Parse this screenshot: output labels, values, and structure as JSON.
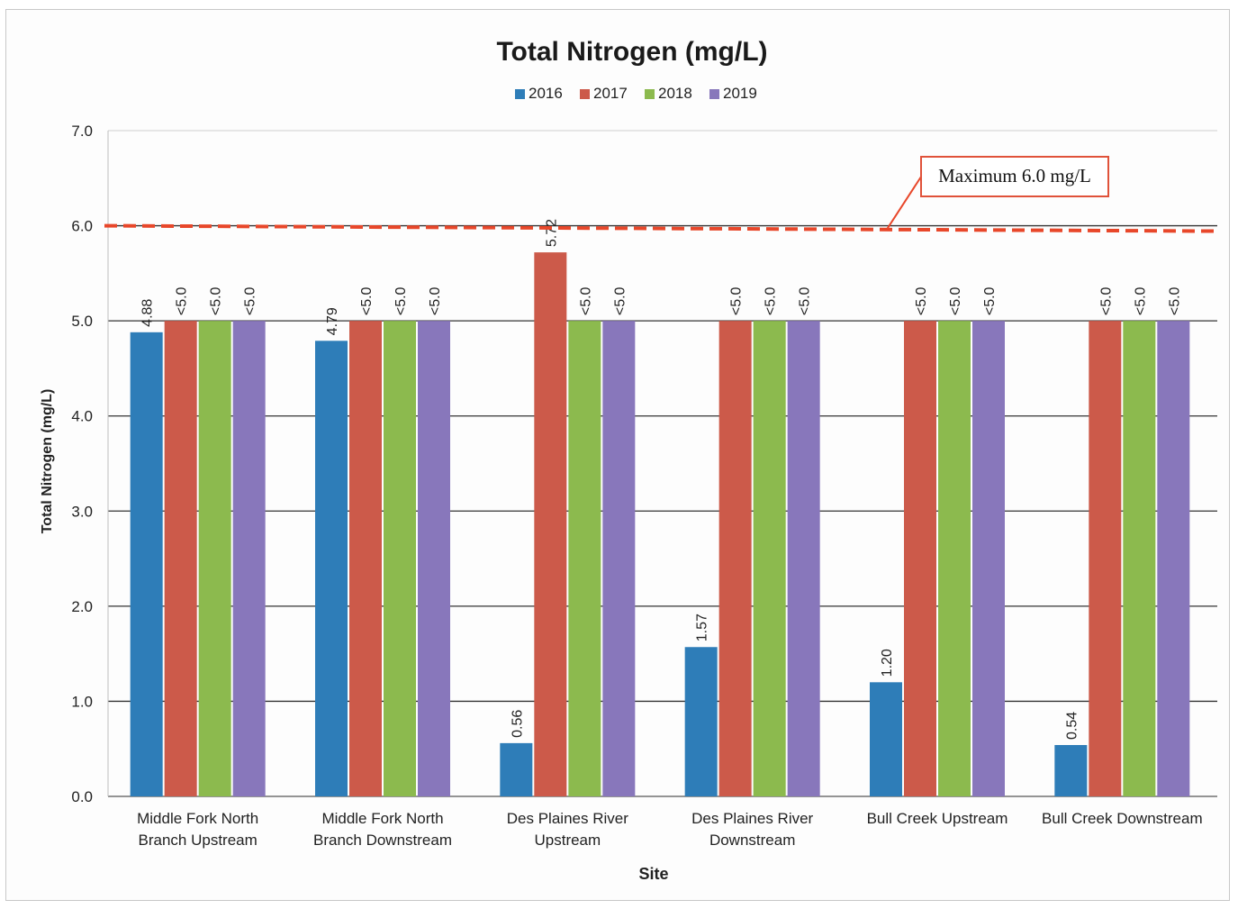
{
  "chart_data": {
    "type": "bar",
    "title": "Total Nitrogen (mg/L)",
    "xlabel": "Site",
    "ylabel": "Total Nitrogen (mg/L)",
    "ylim": [
      0,
      7
    ],
    "yticks": [
      "0.0",
      "1.0",
      "2.0",
      "3.0",
      "4.0",
      "5.0",
      "6.0",
      "7.0"
    ],
    "grid": true,
    "legend_position": "top",
    "categories": [
      [
        "Middle Fork North",
        "Branch Upstream"
      ],
      [
        "Middle Fork North",
        "Branch Downstream"
      ],
      [
        "Des Plaines River",
        "Upstream"
      ],
      [
        "Des Plaines River",
        "Downstream"
      ],
      [
        "Bull Creek Upstream"
      ],
      [
        "Bull Creek Downstream"
      ]
    ],
    "series": [
      {
        "name": "2016",
        "color": "#2e7db8",
        "values": [
          4.88,
          4.79,
          0.56,
          1.57,
          1.2,
          0.54
        ],
        "labels": [
          "4.88",
          "4.79",
          "0.56",
          "1.57",
          "1.20",
          "0.54"
        ]
      },
      {
        "name": "2017",
        "color": "#cc5a4a",
        "values": [
          5.0,
          5.0,
          5.72,
          5.0,
          5.0,
          5.0
        ],
        "labels": [
          "<5.0",
          "<5.0",
          "5.72",
          "<5.0",
          "<5.0",
          "<5.0"
        ]
      },
      {
        "name": "2018",
        "color": "#8cba4e",
        "values": [
          5.0,
          5.0,
          5.0,
          5.0,
          5.0,
          5.0
        ],
        "labels": [
          "<5.0",
          "<5.0",
          "<5.0",
          "<5.0",
          "<5.0",
          "<5.0"
        ]
      },
      {
        "name": "2019",
        "color": "#8877bb",
        "values": [
          5.0,
          5.0,
          5.0,
          5.0,
          5.0,
          5.0
        ],
        "labels": [
          "<5.0",
          "<5.0",
          "<5.0",
          "<5.0",
          "<5.0",
          "<5.0"
        ]
      }
    ],
    "reference_line": {
      "value": 6.0,
      "label": "Maximum 6.0 mg/L",
      "color": "#e8472a"
    }
  }
}
